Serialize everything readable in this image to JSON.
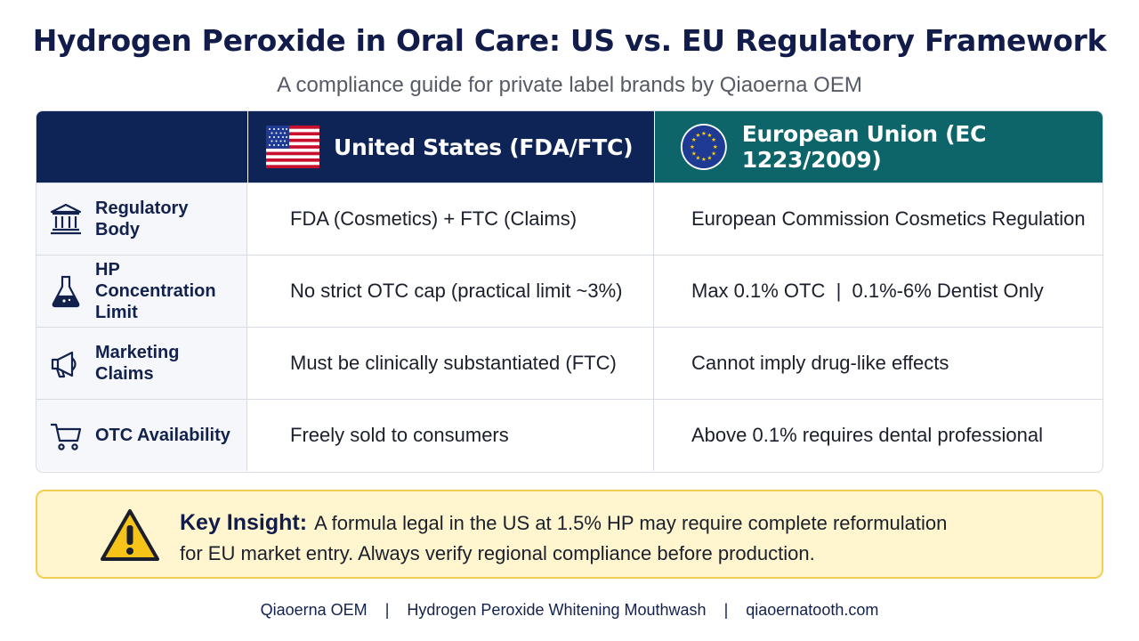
{
  "header": {
    "title": "Hydrogen Peroxide in Oral Care: US vs. EU Regulatory Framework",
    "subtitle": "A compliance guide for private label brands by Qiaoerna OEM"
  },
  "table": {
    "columns": {
      "us": {
        "label": "United States (FDA/FTC)",
        "icon": "us-flag-icon"
      },
      "eu": {
        "label": "European Union (EC 1223/2009)",
        "icon": "eu-flag-icon"
      }
    },
    "rows": [
      {
        "label": "Regulatory Body",
        "icon": "government-building-icon",
        "us": "FDA (Cosmetics) + FTC (Claims)",
        "eu": "European Commission Cosmetics Regulation"
      },
      {
        "label": "HP Concentration Limit",
        "icon": "flask-icon",
        "us": "No strict OTC cap (practical limit ~3%)",
        "eu": "Max 0.1% OTC  |  0.1%-6% Dentist Only"
      },
      {
        "label": "Marketing Claims",
        "icon": "megaphone-icon",
        "us": "Must be clinically substantiated (FTC)",
        "eu": "Cannot imply drug-like effects"
      },
      {
        "label": "OTC Availability",
        "icon": "shopping-cart-icon",
        "us": "Freely sold to consumers",
        "eu": "Above 0.1% requires dental professional"
      }
    ]
  },
  "insight": {
    "icon": "warning-icon",
    "heading": "Key Insight:",
    "text_line1": "A formula legal in the US at 1.5% HP may require complete reformulation",
    "text_line2": "for EU market entry. Always verify regional compliance before production."
  },
  "footer": {
    "brand": "Qiaoerna OEM",
    "sep": "|",
    "product": "Hydrogen Peroxide Whitening Mouthwash",
    "site": "qiaoernatooth.com"
  },
  "colors": {
    "navy": "#0f2456",
    "teal": "#0e6569",
    "insight_bg": "#fff6cf",
    "insight_border": "#f2cf52"
  }
}
